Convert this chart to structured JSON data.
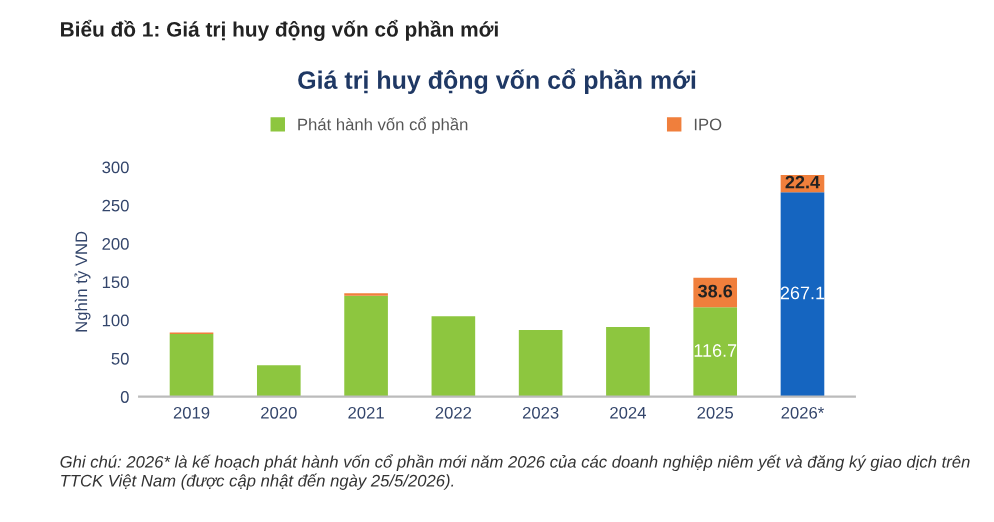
{
  "chart_data": {
    "type": "bar",
    "stacked": true,
    "title": "Biểu đồ 1: Giá trị huy động vốn cổ phần mới",
    "subtitle": "Giá trị huy động vốn cổ phần mới",
    "ylabel": "Nghìn tỷ VND",
    "categories": [
      "2019",
      "2020",
      "2021",
      "2022",
      "2023",
      "2024",
      "2025",
      "2026*"
    ],
    "series": [
      {
        "name": "Phát hành vốn cổ phần",
        "color": "#8dc63f",
        "colors": [
          "#8dc63f",
          "#8dc63f",
          "#8dc63f",
          "#8dc63f",
          "#8dc63f",
          "#8dc63f",
          "#8dc63f",
          "#1565c0"
        ],
        "values": [
          82,
          41,
          132,
          105,
          87,
          91,
          116.7,
          267.1
        ],
        "value_labels": [
          null,
          null,
          null,
          null,
          null,
          null,
          "116.7",
          "267.1"
        ]
      },
      {
        "name": "IPO",
        "color": "#f07f3c",
        "values": [
          2,
          null,
          3,
          null,
          null,
          null,
          38.6,
          22.4
        ],
        "value_labels": [
          null,
          null,
          null,
          null,
          null,
          null,
          "38.6",
          "22.4"
        ]
      }
    ],
    "ylim": [
      0,
      300
    ],
    "yticks": [
      0,
      50,
      100,
      150,
      200,
      250,
      300
    ],
    "grid": false,
    "legend": "top",
    "annotations": [
      "Ghi chú: 2026* là kế hoạch phát hành vốn cổ phần mới năm 2026 của các doanh nghiệp niêm yết và đăng ký giao dịch trên TTCK Việt Nam (được cập nhật đến ngày 25/5/2026)."
    ]
  }
}
